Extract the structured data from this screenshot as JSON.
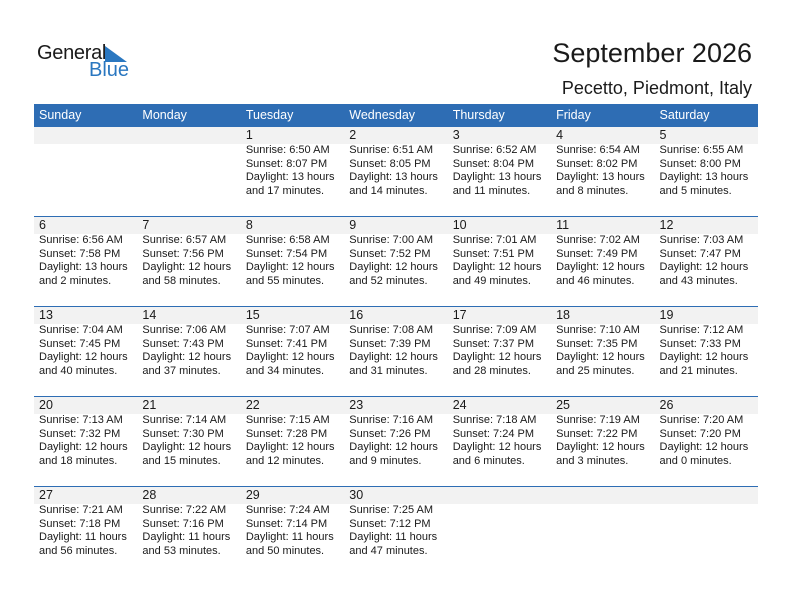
{
  "logo": {
    "text_general": "General",
    "text_blue": "Blue",
    "accent": "#2a77c0"
  },
  "header": {
    "title": "September 2026",
    "location": "Pecetto, Piedmont, Italy"
  },
  "colors": {
    "header_bg": "#2e6db4",
    "band_bg": "#f2f2f2"
  },
  "weekdays": [
    "Sunday",
    "Monday",
    "Tuesday",
    "Wednesday",
    "Thursday",
    "Friday",
    "Saturday"
  ],
  "weeks": [
    [
      null,
      null,
      {
        "day": "1",
        "sunrise": "Sunrise: 6:50 AM",
        "sunset": "Sunset: 8:07 PM",
        "daylight": "Daylight: 13 hours",
        "daylight_rest": "and 17 minutes."
      },
      {
        "day": "2",
        "sunrise": "Sunrise: 6:51 AM",
        "sunset": "Sunset: 8:05 PM",
        "daylight": "Daylight: 13 hours",
        "daylight_rest": "and 14 minutes."
      },
      {
        "day": "3",
        "sunrise": "Sunrise: 6:52 AM",
        "sunset": "Sunset: 8:04 PM",
        "daylight": "Daylight: 13 hours",
        "daylight_rest": "and 11 minutes."
      },
      {
        "day": "4",
        "sunrise": "Sunrise: 6:54 AM",
        "sunset": "Sunset: 8:02 PM",
        "daylight": "Daylight: 13 hours",
        "daylight_rest": "and 8 minutes."
      },
      {
        "day": "5",
        "sunrise": "Sunrise: 6:55 AM",
        "sunset": "Sunset: 8:00 PM",
        "daylight": "Daylight: 13 hours",
        "daylight_rest": "and 5 minutes."
      }
    ],
    [
      {
        "day": "6",
        "sunrise": "Sunrise: 6:56 AM",
        "sunset": "Sunset: 7:58 PM",
        "daylight": "Daylight: 13 hours",
        "daylight_rest": "and 2 minutes."
      },
      {
        "day": "7",
        "sunrise": "Sunrise: 6:57 AM",
        "sunset": "Sunset: 7:56 PM",
        "daylight": "Daylight: 12 hours",
        "daylight_rest": "and 58 minutes."
      },
      {
        "day": "8",
        "sunrise": "Sunrise: 6:58 AM",
        "sunset": "Sunset: 7:54 PM",
        "daylight": "Daylight: 12 hours",
        "daylight_rest": "and 55 minutes."
      },
      {
        "day": "9",
        "sunrise": "Sunrise: 7:00 AM",
        "sunset": "Sunset: 7:52 PM",
        "daylight": "Daylight: 12 hours",
        "daylight_rest": "and 52 minutes."
      },
      {
        "day": "10",
        "sunrise": "Sunrise: 7:01 AM",
        "sunset": "Sunset: 7:51 PM",
        "daylight": "Daylight: 12 hours",
        "daylight_rest": "and 49 minutes."
      },
      {
        "day": "11",
        "sunrise": "Sunrise: 7:02 AM",
        "sunset": "Sunset: 7:49 PM",
        "daylight": "Daylight: 12 hours",
        "daylight_rest": "and 46 minutes."
      },
      {
        "day": "12",
        "sunrise": "Sunrise: 7:03 AM",
        "sunset": "Sunset: 7:47 PM",
        "daylight": "Daylight: 12 hours",
        "daylight_rest": "and 43 minutes."
      }
    ],
    [
      {
        "day": "13",
        "sunrise": "Sunrise: 7:04 AM",
        "sunset": "Sunset: 7:45 PM",
        "daylight": "Daylight: 12 hours",
        "daylight_rest": "and 40 minutes."
      },
      {
        "day": "14",
        "sunrise": "Sunrise: 7:06 AM",
        "sunset": "Sunset: 7:43 PM",
        "daylight": "Daylight: 12 hours",
        "daylight_rest": "and 37 minutes."
      },
      {
        "day": "15",
        "sunrise": "Sunrise: 7:07 AM",
        "sunset": "Sunset: 7:41 PM",
        "daylight": "Daylight: 12 hours",
        "daylight_rest": "and 34 minutes."
      },
      {
        "day": "16",
        "sunrise": "Sunrise: 7:08 AM",
        "sunset": "Sunset: 7:39 PM",
        "daylight": "Daylight: 12 hours",
        "daylight_rest": "and 31 minutes."
      },
      {
        "day": "17",
        "sunrise": "Sunrise: 7:09 AM",
        "sunset": "Sunset: 7:37 PM",
        "daylight": "Daylight: 12 hours",
        "daylight_rest": "and 28 minutes."
      },
      {
        "day": "18",
        "sunrise": "Sunrise: 7:10 AM",
        "sunset": "Sunset: 7:35 PM",
        "daylight": "Daylight: 12 hours",
        "daylight_rest": "and 25 minutes."
      },
      {
        "day": "19",
        "sunrise": "Sunrise: 7:12 AM",
        "sunset": "Sunset: 7:33 PM",
        "daylight": "Daylight: 12 hours",
        "daylight_rest": "and 21 minutes."
      }
    ],
    [
      {
        "day": "20",
        "sunrise": "Sunrise: 7:13 AM",
        "sunset": "Sunset: 7:32 PM",
        "daylight": "Daylight: 12 hours",
        "daylight_rest": "and 18 minutes."
      },
      {
        "day": "21",
        "sunrise": "Sunrise: 7:14 AM",
        "sunset": "Sunset: 7:30 PM",
        "daylight": "Daylight: 12 hours",
        "daylight_rest": "and 15 minutes."
      },
      {
        "day": "22",
        "sunrise": "Sunrise: 7:15 AM",
        "sunset": "Sunset: 7:28 PM",
        "daylight": "Daylight: 12 hours",
        "daylight_rest": "and 12 minutes."
      },
      {
        "day": "23",
        "sunrise": "Sunrise: 7:16 AM",
        "sunset": "Sunset: 7:26 PM",
        "daylight": "Daylight: 12 hours",
        "daylight_rest": "and 9 minutes."
      },
      {
        "day": "24",
        "sunrise": "Sunrise: 7:18 AM",
        "sunset": "Sunset: 7:24 PM",
        "daylight": "Daylight: 12 hours",
        "daylight_rest": "and 6 minutes."
      },
      {
        "day": "25",
        "sunrise": "Sunrise: 7:19 AM",
        "sunset": "Sunset: 7:22 PM",
        "daylight": "Daylight: 12 hours",
        "daylight_rest": "and 3 minutes."
      },
      {
        "day": "26",
        "sunrise": "Sunrise: 7:20 AM",
        "sunset": "Sunset: 7:20 PM",
        "daylight": "Daylight: 12 hours",
        "daylight_rest": "and 0 minutes."
      }
    ],
    [
      {
        "day": "27",
        "sunrise": "Sunrise: 7:21 AM",
        "sunset": "Sunset: 7:18 PM",
        "daylight": "Daylight: 11 hours",
        "daylight_rest": "and 56 minutes."
      },
      {
        "day": "28",
        "sunrise": "Sunrise: 7:22 AM",
        "sunset": "Sunset: 7:16 PM",
        "daylight": "Daylight: 11 hours",
        "daylight_rest": "and 53 minutes."
      },
      {
        "day": "29",
        "sunrise": "Sunrise: 7:24 AM",
        "sunset": "Sunset: 7:14 PM",
        "daylight": "Daylight: 11 hours",
        "daylight_rest": "and 50 minutes."
      },
      {
        "day": "30",
        "sunrise": "Sunrise: 7:25 AM",
        "sunset": "Sunset: 7:12 PM",
        "daylight": "Daylight: 11 hours",
        "daylight_rest": "and 47 minutes."
      },
      null,
      null,
      null
    ]
  ]
}
